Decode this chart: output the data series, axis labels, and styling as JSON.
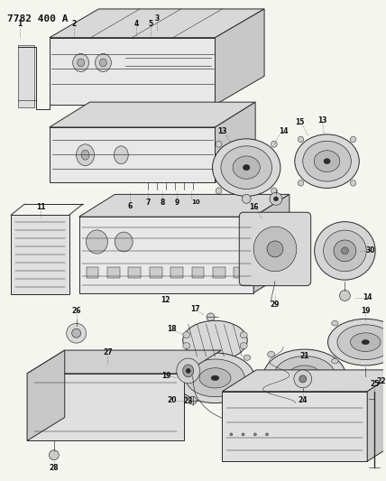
{
  "title": "7782 400 A",
  "bg_color": "#f5f5f0",
  "line_color": "#2a2a2a",
  "label_color": "#111111",
  "fig_width": 4.28,
  "fig_height": 5.33,
  "dpi": 100
}
